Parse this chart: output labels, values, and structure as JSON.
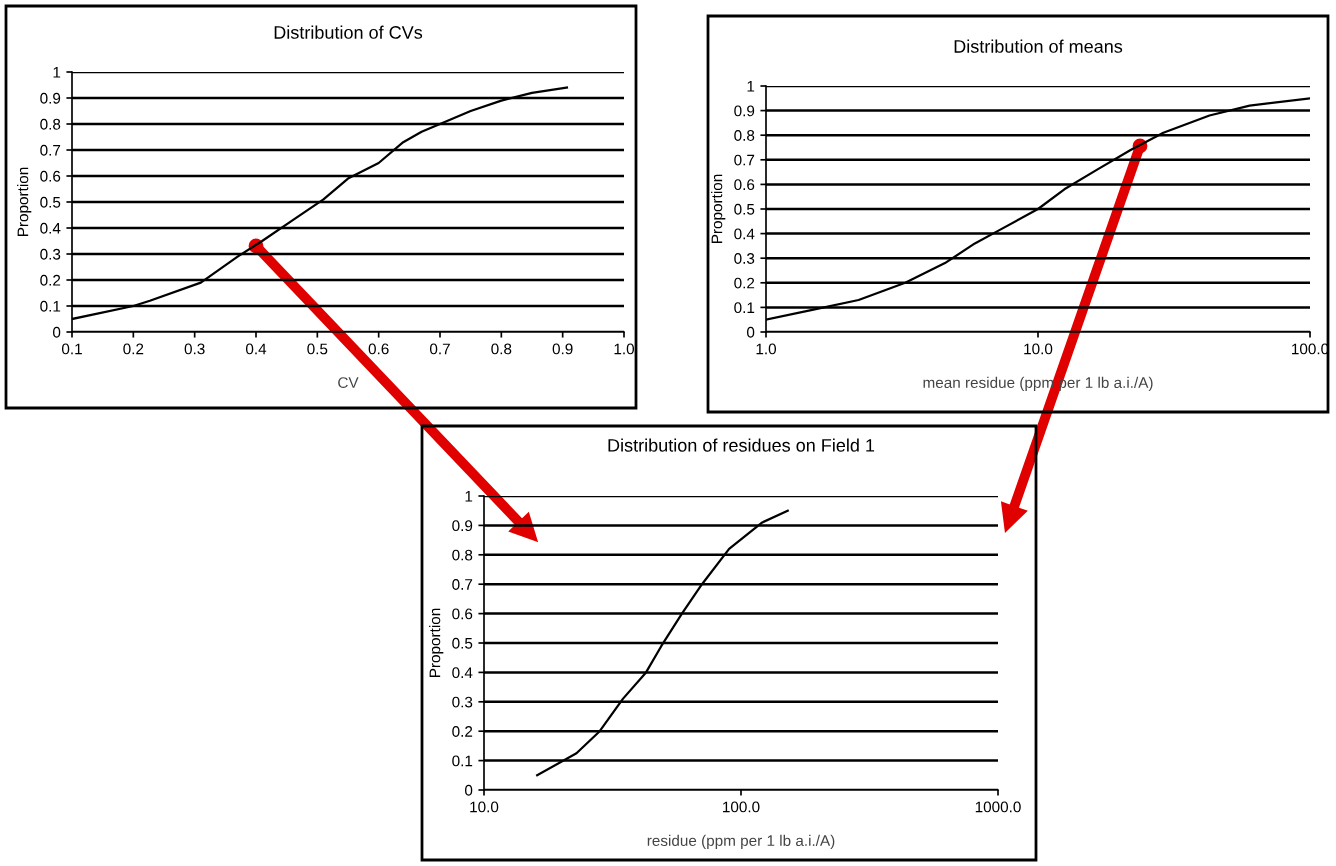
{
  "chart_data": [
    {
      "type": "line",
      "title": "Distribution of CVs",
      "xlabel": "CV",
      "ylabel": "Proportion",
      "x": [
        0.1,
        0.2,
        0.227,
        0.31,
        0.34,
        0.37,
        0.41,
        0.46,
        0.51,
        0.55,
        0.6,
        0.64,
        0.67,
        0.7,
        0.75,
        0.8,
        0.85,
        0.907
      ],
      "series": [
        {
          "color": "#000000",
          "values": [
            0.05,
            0.1,
            0.12,
            0.19,
            0.24,
            0.29,
            0.35,
            0.43,
            0.51,
            0.59,
            0.65,
            0.73,
            0.77,
            0.8,
            0.85,
            0.89,
            0.92,
            0.94
          ]
        }
      ],
      "xlim": [
        0.1,
        1.0
      ],
      "xticks": [
        0.1,
        0.2,
        0.3,
        0.4,
        0.5,
        0.6,
        0.7,
        0.8,
        0.9,
        {
          "value": 1.0,
          "label": "1.0"
        }
      ],
      "ylim": [
        0,
        1
      ],
      "yticks": [
        0,
        0.1,
        0.2,
        0.3,
        0.4,
        0.5,
        0.6,
        0.7,
        0.8,
        0.9,
        1
      ],
      "grid": "y",
      "marker": "none",
      "line_style": "solid"
    },
    {
      "type": "line",
      "title": "Distribution of means",
      "xlabel": "mean residue (ppm per 1 lb a.i./A)",
      "ylabel": "Proportion",
      "x": [
        1,
        1.48,
        2.19,
        3.25,
        4.55,
        5.86,
        7.1,
        10,
        12.5,
        16.5,
        21.9,
        28.9,
        42.7,
        60,
        100
      ],
      "series": [
        {
          "color": "#000000",
          "values": [
            0.05,
            0.09,
            0.13,
            0.2,
            0.28,
            0.36,
            0.41,
            0.5,
            0.58,
            0.66,
            0.74,
            0.81,
            0.88,
            0.92,
            0.95
          ]
        }
      ],
      "log": "x",
      "xlim": [
        1,
        100
      ],
      "xticks": [
        {
          "value": 1,
          "label": "1.0"
        },
        {
          "value": 10,
          "label": "10.0"
        },
        {
          "value": 100,
          "label": "100.0"
        }
      ],
      "ylim": [
        0,
        1
      ],
      "yticks": [
        0,
        0.1,
        0.2,
        0.3,
        0.4,
        0.5,
        0.6,
        0.7,
        0.8,
        0.9,
        1
      ],
      "grid": "y",
      "marker": "none",
      "line_style": "solid"
    },
    {
      "type": "line",
      "title": "Distribution of residues on Field 1",
      "xlabel": "residue (ppm per 1 lb a.i./A)",
      "ylabel": "Proportion",
      "x": [
        16.1,
        22.9,
        28.2,
        34.7,
        42.7,
        49,
        58.9,
        70.5,
        89.9,
        121,
        152
      ],
      "series": [
        {
          "color": "#000000",
          "values": [
            0.05,
            0.125,
            0.2,
            0.31,
            0.4,
            0.49,
            0.6,
            0.7,
            0.82,
            0.91,
            0.95
          ]
        }
      ],
      "log": "x",
      "xlim": [
        10,
        1000
      ],
      "xticks": [
        {
          "value": 10,
          "label": "10.0"
        },
        {
          "value": 100,
          "label": "100.0"
        },
        {
          "value": 1000,
          "label": "1000.0"
        }
      ],
      "ylim": [
        0,
        1
      ],
      "yticks": [
        0,
        0.1,
        0.2,
        0.3,
        0.4,
        0.5,
        0.6,
        0.7,
        0.8,
        0.9,
        1
      ],
      "grid": "y",
      "marker": "none",
      "line_style": "solid"
    }
  ]
}
